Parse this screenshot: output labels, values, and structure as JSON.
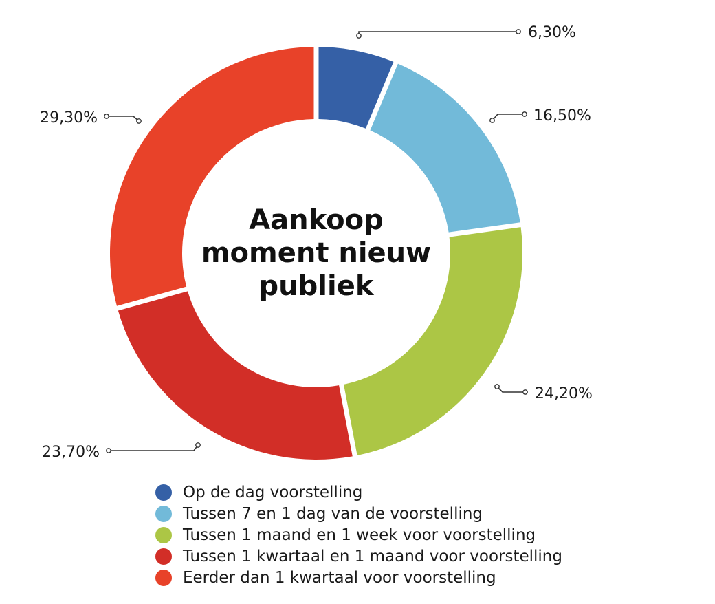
{
  "chart_data": {
    "type": "pie",
    "variant": "donut",
    "title": "Aankoop moment nieuw publiek",
    "title_lines": [
      "Aankoop",
      "moment nieuw",
      "publiek"
    ],
    "categories": [
      "Op de dag voorstelling",
      "Tussen 7 en 1 dag van de voorstelling",
      "Tussen 1 maand en 1 week voor voorstelling",
      "Tussen 1 kwartaal en 1 maand voor voorstelling",
      "Eerder dan 1 kwartaal voor voorstelling"
    ],
    "values": [
      6.3,
      16.5,
      24.2,
      23.7,
      29.3
    ],
    "value_labels": [
      "6,30%",
      "16,50%",
      "24,20%",
      "23,70%",
      "29,30%"
    ],
    "colors": [
      "#3560a6",
      "#72bad9",
      "#acc645",
      "#d22e27",
      "#e84229"
    ],
    "legend_position": "bottom"
  }
}
